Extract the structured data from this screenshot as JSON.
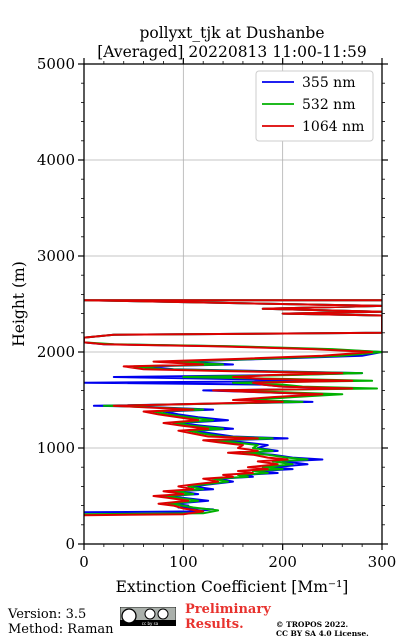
{
  "chart_data": {
    "type": "line",
    "title_line1": "pollyxt_tjk at Dushanbe",
    "title_line2": "[Averaged] 20220813 11:00-11:59",
    "xlabel": "Extinction Coefficient [Mm⁻¹]",
    "ylabel": "Height (m)",
    "xlim": [
      0,
      300
    ],
    "ylim": [
      0,
      5000
    ],
    "xticks": [
      0,
      100,
      200,
      300
    ],
    "yticks": [
      0,
      1000,
      2000,
      3000,
      4000,
      5000
    ],
    "grid": true,
    "legend_position": "top-right",
    "series": [
      {
        "name": "355 nm",
        "color": "#0000ee",
        "points": [
          [
            0,
            330
          ],
          [
            110,
            340
          ],
          [
            130,
            360
          ],
          [
            95,
            380
          ],
          [
            105,
            400
          ],
          [
            90,
            420
          ],
          [
            125,
            450
          ],
          [
            100,
            480
          ],
          [
            85,
            500
          ],
          [
            115,
            520
          ],
          [
            95,
            550
          ],
          [
            130,
            570
          ],
          [
            110,
            600
          ],
          [
            125,
            620
          ],
          [
            150,
            650
          ],
          [
            135,
            680
          ],
          [
            170,
            700
          ],
          [
            160,
            720
          ],
          [
            195,
            740
          ],
          [
            175,
            760
          ],
          [
            210,
            780
          ],
          [
            190,
            800
          ],
          [
            225,
            830
          ],
          [
            200,
            860
          ],
          [
            240,
            880
          ],
          [
            210,
            900
          ],
          [
            190,
            930
          ],
          [
            165,
            950
          ],
          [
            195,
            970
          ],
          [
            175,
            1000
          ],
          [
            185,
            1030
          ],
          [
            160,
            1060
          ],
          [
            140,
            1080
          ],
          [
            205,
            1100
          ],
          [
            150,
            1120
          ],
          [
            130,
            1150
          ],
          [
            110,
            1180
          ],
          [
            150,
            1200
          ],
          [
            120,
            1230
          ],
          [
            95,
            1260
          ],
          [
            145,
            1290
          ],
          [
            115,
            1320
          ],
          [
            95,
            1350
          ],
          [
            80,
            1380
          ],
          [
            130,
            1400
          ],
          [
            60,
            1430
          ],
          [
            10,
            1440
          ],
          [
            230,
            1480
          ],
          [
            160,
            1500
          ],
          [
            200,
            1530
          ],
          [
            240,
            1560
          ],
          [
            180,
            1580
          ],
          [
            120,
            1600
          ],
          [
            270,
            1620
          ],
          [
            200,
            1640
          ],
          [
            180,
            1660
          ],
          [
            0,
            1680
          ],
          [
            260,
            1700
          ],
          [
            140,
            1720
          ],
          [
            30,
            1740
          ],
          [
            200,
            1760
          ],
          [
            280,
            1780
          ],
          [
            190,
            1800
          ],
          [
            90,
            1820
          ],
          [
            60,
            1850
          ],
          [
            150,
            1870
          ],
          [
            100,
            1900
          ],
          [
            190,
            1930
          ],
          [
            280,
            1960
          ],
          [
            300,
            2000
          ],
          [
            240,
            2030
          ],
          [
            140,
            2060
          ],
          [
            20,
            2080
          ],
          [
            0,
            2100
          ],
          [
            0,
            2130
          ],
          [
            0,
            2150
          ],
          [
            30,
            2180
          ],
          [
            300,
            2200
          ],
          [
            300,
            2380
          ],
          [
            200,
            2400
          ],
          [
            300,
            2420
          ],
          [
            180,
            2450
          ],
          [
            300,
            2480
          ],
          [
            0,
            2540
          ],
          [
            300,
            2540
          ]
        ]
      },
      {
        "name": "532 nm",
        "color": "#00b000",
        "points": [
          [
            0,
            310
          ],
          [
            120,
            320
          ],
          [
            135,
            350
          ],
          [
            110,
            380
          ],
          [
            100,
            400
          ],
          [
            85,
            420
          ],
          [
            115,
            450
          ],
          [
            95,
            480
          ],
          [
            80,
            500
          ],
          [
            110,
            520
          ],
          [
            90,
            550
          ],
          [
            120,
            570
          ],
          [
            105,
            600
          ],
          [
            120,
            620
          ],
          [
            145,
            650
          ],
          [
            130,
            680
          ],
          [
            165,
            700
          ],
          [
            155,
            720
          ],
          [
            185,
            740
          ],
          [
            170,
            760
          ],
          [
            200,
            780
          ],
          [
            180,
            800
          ],
          [
            210,
            830
          ],
          [
            190,
            860
          ],
          [
            225,
            880
          ],
          [
            205,
            900
          ],
          [
            185,
            930
          ],
          [
            160,
            950
          ],
          [
            190,
            970
          ],
          [
            170,
            1000
          ],
          [
            175,
            1030
          ],
          [
            150,
            1060
          ],
          [
            130,
            1080
          ],
          [
            190,
            1100
          ],
          [
            140,
            1120
          ],
          [
            120,
            1150
          ],
          [
            105,
            1180
          ],
          [
            140,
            1200
          ],
          [
            110,
            1230
          ],
          [
            90,
            1260
          ],
          [
            130,
            1290
          ],
          [
            105,
            1320
          ],
          [
            85,
            1350
          ],
          [
            70,
            1380
          ],
          [
            120,
            1400
          ],
          [
            55,
            1430
          ],
          [
            20,
            1440
          ],
          [
            220,
            1480
          ],
          [
            170,
            1500
          ],
          [
            210,
            1530
          ],
          [
            260,
            1560
          ],
          [
            200,
            1580
          ],
          [
            140,
            1600
          ],
          [
            295,
            1620
          ],
          [
            220,
            1640
          ],
          [
            200,
            1660
          ],
          [
            150,
            1680
          ],
          [
            290,
            1700
          ],
          [
            200,
            1720
          ],
          [
            100,
            1740
          ],
          [
            210,
            1760
          ],
          [
            280,
            1780
          ],
          [
            170,
            1800
          ],
          [
            80,
            1820
          ],
          [
            50,
            1850
          ],
          [
            140,
            1870
          ],
          [
            90,
            1900
          ],
          [
            180,
            1930
          ],
          [
            260,
            1960
          ],
          [
            300,
            2000
          ],
          [
            250,
            2030
          ],
          [
            150,
            2060
          ],
          [
            30,
            2080
          ],
          [
            0,
            2100
          ],
          [
            0,
            2130
          ],
          [
            0,
            2150
          ],
          [
            30,
            2180
          ],
          [
            300,
            2200
          ],
          [
            300,
            2380
          ],
          [
            200,
            2400
          ],
          [
            300,
            2420
          ],
          [
            180,
            2450
          ],
          [
            300,
            2480
          ],
          [
            0,
            2540
          ],
          [
            300,
            2540
          ]
        ]
      },
      {
        "name": "1064 nm",
        "color": "#dd0000",
        "points": [
          [
            0,
            300
          ],
          [
            100,
            310
          ],
          [
            120,
            340
          ],
          [
            100,
            370
          ],
          [
            90,
            400
          ],
          [
            75,
            420
          ],
          [
            105,
            450
          ],
          [
            85,
            480
          ],
          [
            70,
            500
          ],
          [
            100,
            520
          ],
          [
            80,
            550
          ],
          [
            110,
            570
          ],
          [
            95,
            600
          ],
          [
            110,
            620
          ],
          [
            135,
            650
          ],
          [
            120,
            680
          ],
          [
            150,
            700
          ],
          [
            140,
            720
          ],
          [
            170,
            740
          ],
          [
            155,
            760
          ],
          [
            185,
            780
          ],
          [
            165,
            800
          ],
          [
            195,
            830
          ],
          [
            175,
            860
          ],
          [
            205,
            880
          ],
          [
            185,
            900
          ],
          [
            170,
            930
          ],
          [
            145,
            950
          ],
          [
            175,
            970
          ],
          [
            155,
            1000
          ],
          [
            160,
            1030
          ],
          [
            135,
            1060
          ],
          [
            120,
            1080
          ],
          [
            175,
            1100
          ],
          [
            125,
            1120
          ],
          [
            110,
            1150
          ],
          [
            95,
            1180
          ],
          [
            125,
            1200
          ],
          [
            100,
            1230
          ],
          [
            80,
            1260
          ],
          [
            115,
            1290
          ],
          [
            95,
            1320
          ],
          [
            75,
            1350
          ],
          [
            60,
            1380
          ],
          [
            110,
            1400
          ],
          [
            50,
            1430
          ],
          [
            30,
            1440
          ],
          [
            200,
            1480
          ],
          [
            150,
            1500
          ],
          [
            190,
            1530
          ],
          [
            240,
            1560
          ],
          [
            180,
            1580
          ],
          [
            130,
            1600
          ],
          [
            270,
            1620
          ],
          [
            200,
            1640
          ],
          [
            180,
            1660
          ],
          [
            170,
            1680
          ],
          [
            270,
            1700
          ],
          [
            180,
            1720
          ],
          [
            150,
            1740
          ],
          [
            190,
            1760
          ],
          [
            260,
            1780
          ],
          [
            150,
            1800
          ],
          [
            60,
            1820
          ],
          [
            40,
            1850
          ],
          [
            120,
            1870
          ],
          [
            70,
            1900
          ],
          [
            160,
            1930
          ],
          [
            240,
            1960
          ],
          [
            290,
            2000
          ],
          [
            230,
            2030
          ],
          [
            130,
            2060
          ],
          [
            20,
            2080
          ],
          [
            0,
            2100
          ],
          [
            0,
            2130
          ],
          [
            0,
            2150
          ],
          [
            30,
            2180
          ],
          [
            300,
            2200
          ],
          [
            300,
            2380
          ],
          [
            200,
            2400
          ],
          [
            300,
            2420
          ],
          [
            180,
            2450
          ],
          [
            300,
            2480
          ],
          [
            0,
            2540
          ],
          [
            300,
            2540
          ]
        ]
      }
    ]
  },
  "footer": {
    "version": "Version: 3.5",
    "method": "Method: Raman",
    "cc_text": "cc by sa",
    "preliminary_line1": "Preliminary",
    "preliminary_line2": "Results.",
    "copyright_line1": "© TROPOS 2022.",
    "copyright_line2": "CC BY SA 4.0 License."
  }
}
